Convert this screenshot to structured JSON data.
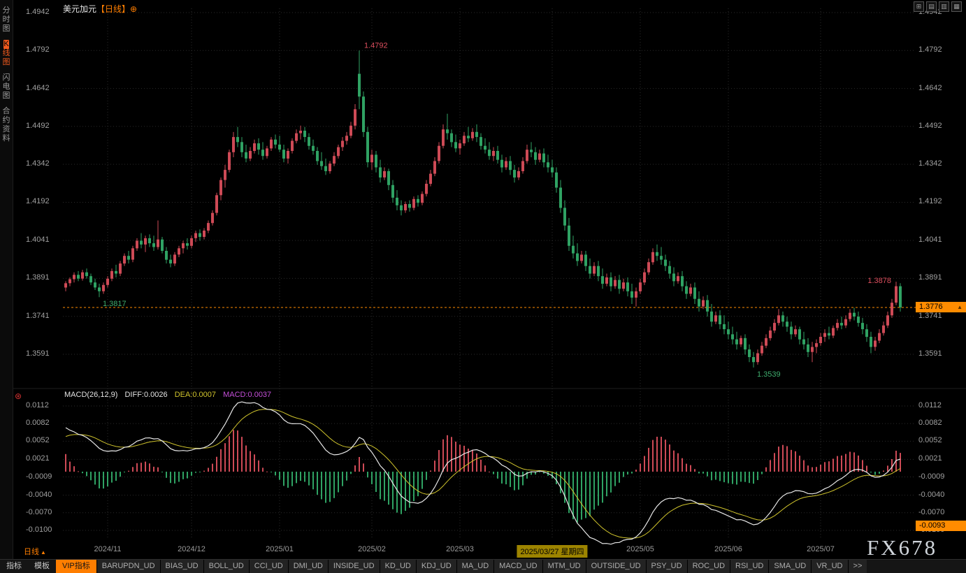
{
  "header": {
    "symbol": "美元加元",
    "period": "【日线】",
    "add_icon": "⊕"
  },
  "window_controls": {
    "icons": [
      {
        "name": "layout-grid-icon",
        "glyph": "⊞"
      },
      {
        "name": "layout-rows-icon",
        "glyph": "▤"
      },
      {
        "name": "layout-columns-icon",
        "glyph": "▥"
      },
      {
        "name": "layout-cells-icon",
        "glyph": "▦"
      }
    ]
  },
  "sidebar": {
    "items": [
      {
        "label": "分时图",
        "active": false
      },
      {
        "label": "K线图",
        "active": true
      },
      {
        "label": "闪电图",
        "active": false
      },
      {
        "label": "合约资料",
        "active": false
      }
    ]
  },
  "macd_header": {
    "remove_icon": "⊛",
    "title": "MACD(26,12,9)",
    "diff": "DIFF:0.0026",
    "dea": "DEA:0.0007",
    "macd": "MACD:0.0037"
  },
  "annotations": {
    "spike_high": "1.4792",
    "early_low": "1.3817",
    "recent_high": "1.3878",
    "major_low": "1.3539",
    "current_price": "1.3776",
    "current_price_arrow": "▲",
    "macd_tag": "-0.0093"
  },
  "footer": {
    "period_label": "日线",
    "period_arrow": "▲"
  },
  "bottom_bar": {
    "tabs": [
      "指标",
      "模板"
    ],
    "vip_tab": "VIP指标",
    "indicator_tabs": [
      "BARUPDN_UD",
      "BIAS_UD",
      "BOLL_UD",
      "CCI_UD",
      "DMI_UD",
      "INSIDE_UD",
      "KD_UD",
      "KDJ_UD",
      "MA_UD",
      "MACD_UD",
      "MTM_UD",
      "OUTSIDE_UD",
      "PSY_UD",
      "ROC_UD",
      "RSI_UD",
      "SMA_UD",
      "VR_UD"
    ],
    "more_tab": ">>"
  },
  "watermark": "FX678",
  "colors": {
    "up": "#ce4a56",
    "down": "#2fa263",
    "accent_orange": "#ff7e00",
    "diff_line": "#e8e8e8",
    "dea_line": "#cfc32c",
    "macd_value": "#c44fd8",
    "annotation_high": "#de4f5e",
    "annotation_low": "#3fae6e",
    "grid": "#2b2b2b",
    "axis_text": "#a0a0a0",
    "date_highlight_bg": "#9d8400",
    "price_line": "#ff8c00"
  },
  "chart_data": {
    "type": "candlestick",
    "symbol": "美元加元 (USD/CAD)",
    "timeframe": "日线 (daily)",
    "price_axis_labels": [
      "1.4942",
      "1.4792",
      "1.4642",
      "1.4492",
      "1.4342",
      "1.4192",
      "1.4041",
      "1.3891",
      "1.3741",
      "1.3591"
    ],
    "price_ylim": [
      1.3591,
      1.4942
    ],
    "macd_axis_labels": [
      "0.0112",
      "0.0082",
      "0.0052",
      "0.0021",
      "-0.0009",
      "-0.0040",
      "-0.0070",
      "-0.0100"
    ],
    "macd_ylim": [
      -0.01,
      0.0112
    ],
    "x_ticks": [
      {
        "index": 10,
        "label": "2024/11",
        "highlight": false
      },
      {
        "index": 30,
        "label": "2024/12",
        "highlight": false
      },
      {
        "index": 51,
        "label": "2025/01",
        "highlight": false
      },
      {
        "index": 73,
        "label": "2025/02",
        "highlight": false
      },
      {
        "index": 94,
        "label": "2025/03",
        "highlight": false
      },
      {
        "index": 116,
        "label": "2025/03/27 星期四",
        "highlight": true
      },
      {
        "index": 137,
        "label": "2025/05",
        "highlight": false
      },
      {
        "index": 158,
        "label": "2025/06",
        "highlight": false
      },
      {
        "index": 180,
        "label": "2025/07",
        "highlight": false
      }
    ],
    "macd_params": {
      "slow": 26,
      "fast": 12,
      "signal": 9,
      "diff": 0.0026,
      "dea": 0.0007,
      "macd": 0.0037
    },
    "candles": [
      [
        1.3855,
        1.388,
        1.384,
        1.3872
      ],
      [
        1.3872,
        1.3895,
        1.386,
        1.3888
      ],
      [
        1.3888,
        1.3915,
        1.3875,
        1.3905
      ],
      [
        1.3905,
        1.392,
        1.388,
        1.389
      ],
      [
        1.389,
        1.3925,
        1.3882,
        1.3915
      ],
      [
        1.3915,
        1.393,
        1.389,
        1.39
      ],
      [
        1.39,
        1.391,
        1.3865,
        1.3875
      ],
      [
        1.3875,
        1.389,
        1.3845,
        1.3855
      ],
      [
        1.3855,
        1.387,
        1.3817,
        1.384
      ],
      [
        1.384,
        1.3875,
        1.383,
        1.3865
      ],
      [
        1.3865,
        1.39,
        1.3855,
        1.389
      ],
      [
        1.389,
        1.393,
        1.388,
        1.392
      ],
      [
        1.392,
        1.3945,
        1.3895,
        1.391
      ],
      [
        1.391,
        1.396,
        1.39,
        1.395
      ],
      [
        1.395,
        1.399,
        1.394,
        1.398
      ],
      [
        1.398,
        1.4,
        1.395,
        1.3965
      ],
      [
        1.3965,
        1.402,
        1.3955,
        1.401
      ],
      [
        1.401,
        1.405,
        1.4,
        1.404
      ],
      [
        1.404,
        1.407,
        1.401,
        1.4025
      ],
      [
        1.4025,
        1.406,
        1.3995,
        1.405
      ],
      [
        1.405,
        1.4065,
        1.4015,
        1.403
      ],
      [
        1.403,
        1.406,
        1.4,
        1.4015
      ],
      [
        1.4015,
        1.412,
        1.4005,
        1.4045
      ],
      [
        1.4045,
        1.4055,
        1.399,
        1.4
      ],
      [
        1.4,
        1.4015,
        1.395,
        1.3965
      ],
      [
        1.3965,
        1.3985,
        1.3935,
        1.395
      ],
      [
        1.395,
        1.3995,
        1.394,
        1.3985
      ],
      [
        1.3985,
        1.402,
        1.3975,
        1.401
      ],
      [
        1.401,
        1.404,
        1.399,
        1.403
      ],
      [
        1.403,
        1.405,
        1.4005,
        1.402
      ],
      [
        1.402,
        1.406,
        1.401,
        1.405
      ],
      [
        1.405,
        1.408,
        1.4035,
        1.407
      ],
      [
        1.407,
        1.4085,
        1.404,
        1.4055
      ],
      [
        1.4055,
        1.409,
        1.4045,
        1.408
      ],
      [
        1.408,
        1.412,
        1.407,
        1.411
      ],
      [
        1.411,
        1.416,
        1.41,
        1.415
      ],
      [
        1.415,
        1.423,
        1.414,
        1.422
      ],
      [
        1.422,
        1.429,
        1.42,
        1.428
      ],
      [
        1.428,
        1.434,
        1.425,
        1.432
      ],
      [
        1.432,
        1.44,
        1.431,
        1.439
      ],
      [
        1.439,
        1.447,
        1.437,
        1.445
      ],
      [
        1.445,
        1.449,
        1.441,
        1.443
      ],
      [
        1.443,
        1.445,
        1.437,
        1.439
      ],
      [
        1.439,
        1.442,
        1.435,
        1.4365
      ],
      [
        1.4365,
        1.441,
        1.4355,
        1.4395
      ],
      [
        1.4395,
        1.444,
        1.4385,
        1.4425
      ],
      [
        1.4425,
        1.4445,
        1.438,
        1.44
      ],
      [
        1.44,
        1.443,
        1.436,
        1.4375
      ],
      [
        1.4375,
        1.4415,
        1.4365,
        1.4405
      ],
      [
        1.4405,
        1.445,
        1.4395,
        1.444
      ],
      [
        1.444,
        1.446,
        1.4405,
        1.442
      ],
      [
        1.442,
        1.4455,
        1.439,
        1.44
      ],
      [
        1.44,
        1.442,
        1.435,
        1.4365
      ],
      [
        1.4365,
        1.4405,
        1.4345,
        1.4395
      ],
      [
        1.4395,
        1.4445,
        1.4385,
        1.4435
      ],
      [
        1.4435,
        1.448,
        1.4425,
        1.4465
      ],
      [
        1.4465,
        1.4495,
        1.444,
        1.4475
      ],
      [
        1.4475,
        1.449,
        1.443,
        1.445
      ],
      [
        1.445,
        1.4465,
        1.44,
        1.4415
      ],
      [
        1.4415,
        1.444,
        1.438,
        1.4395
      ],
      [
        1.4395,
        1.441,
        1.434,
        1.4355
      ],
      [
        1.4355,
        1.439,
        1.432,
        1.4335
      ],
      [
        1.4335,
        1.4365,
        1.43,
        1.4315
      ],
      [
        1.4315,
        1.4355,
        1.4305,
        1.4345
      ],
      [
        1.4345,
        1.439,
        1.4335,
        1.4375
      ],
      [
        1.4375,
        1.442,
        1.4365,
        1.441
      ],
      [
        1.441,
        1.445,
        1.4395,
        1.4435
      ],
      [
        1.4435,
        1.447,
        1.442,
        1.4455
      ],
      [
        1.4455,
        1.451,
        1.4445,
        1.4495
      ],
      [
        1.4495,
        1.458,
        1.448,
        1.456
      ],
      [
        1.47,
        1.4792,
        1.456,
        1.461
      ],
      [
        1.461,
        1.463,
        1.445,
        1.447
      ],
      [
        1.447,
        1.449,
        1.433,
        1.435
      ],
      [
        1.435,
        1.44,
        1.432,
        1.438
      ],
      [
        1.438,
        1.4395,
        1.431,
        1.433
      ],
      [
        1.433,
        1.436,
        1.427,
        1.429
      ],
      [
        1.429,
        1.433,
        1.428,
        1.4315
      ],
      [
        1.4315,
        1.4325,
        1.424,
        1.426
      ],
      [
        1.426,
        1.428,
        1.419,
        1.421
      ],
      [
        1.421,
        1.424,
        1.416,
        1.418
      ],
      [
        1.418,
        1.42,
        1.414,
        1.416
      ],
      [
        1.416,
        1.4195,
        1.415,
        1.4185
      ],
      [
        1.4185,
        1.42,
        1.4155,
        1.417
      ],
      [
        1.417,
        1.4215,
        1.416,
        1.4205
      ],
      [
        1.4205,
        1.422,
        1.4175,
        1.419
      ],
      [
        1.419,
        1.4235,
        1.418,
        1.4225
      ],
      [
        1.4225,
        1.428,
        1.4215,
        1.4265
      ],
      [
        1.4265,
        1.432,
        1.4255,
        1.4305
      ],
      [
        1.4305,
        1.437,
        1.4295,
        1.4355
      ],
      [
        1.4355,
        1.443,
        1.4345,
        1.4415
      ],
      [
        1.4415,
        1.45,
        1.4405,
        1.448
      ],
      [
        1.448,
        1.4542,
        1.444,
        1.4465
      ],
      [
        1.4465,
        1.448,
        1.441,
        1.443
      ],
      [
        1.443,
        1.446,
        1.439,
        1.4405
      ],
      [
        1.4405,
        1.444,
        1.438,
        1.4425
      ],
      [
        1.4425,
        1.447,
        1.4415,
        1.4455
      ],
      [
        1.4455,
        1.449,
        1.443,
        1.4445
      ],
      [
        1.4445,
        1.4485,
        1.4435,
        1.447
      ],
      [
        1.447,
        1.45,
        1.443,
        1.445
      ],
      [
        1.445,
        1.4465,
        1.44,
        1.4415
      ],
      [
        1.4415,
        1.4445,
        1.4385,
        1.44
      ],
      [
        1.44,
        1.443,
        1.436,
        1.4375
      ],
      [
        1.4375,
        1.441,
        1.4355,
        1.4395
      ],
      [
        1.4395,
        1.4415,
        1.4345,
        1.436
      ],
      [
        1.436,
        1.438,
        1.431,
        1.433
      ],
      [
        1.433,
        1.437,
        1.432,
        1.4355
      ],
      [
        1.4355,
        1.4375,
        1.43,
        1.432
      ],
      [
        1.432,
        1.434,
        1.427,
        1.429
      ],
      [
        1.429,
        1.433,
        1.428,
        1.4315
      ],
      [
        1.4315,
        1.437,
        1.4305,
        1.4355
      ],
      [
        1.4355,
        1.442,
        1.4345,
        1.44
      ],
      [
        1.44,
        1.443,
        1.437,
        1.439
      ],
      [
        1.439,
        1.441,
        1.434,
        1.436
      ],
      [
        1.436,
        1.44,
        1.435,
        1.4385
      ],
      [
        1.4385,
        1.4405,
        1.433,
        1.435
      ],
      [
        1.435,
        1.438,
        1.431,
        1.433
      ],
      [
        1.433,
        1.436,
        1.429,
        1.431
      ],
      [
        1.431,
        1.433,
        1.423,
        1.425
      ],
      [
        1.425,
        1.428,
        1.415,
        1.417
      ],
      [
        1.417,
        1.42,
        1.408,
        1.41
      ],
      [
        1.41,
        1.413,
        1.4,
        1.402
      ],
      [
        1.402,
        1.406,
        1.397,
        1.399
      ],
      [
        1.399,
        1.403,
        1.394,
        1.396
      ],
      [
        1.396,
        1.4,
        1.395,
        1.3985
      ],
      [
        1.3985,
        1.4,
        1.392,
        1.394
      ],
      [
        1.394,
        1.397,
        1.389,
        1.391
      ],
      [
        1.391,
        1.3955,
        1.39,
        1.394
      ],
      [
        1.394,
        1.396,
        1.388,
        1.39
      ],
      [
        1.39,
        1.393,
        1.385,
        1.387
      ],
      [
        1.387,
        1.391,
        1.386,
        1.3895
      ],
      [
        1.3895,
        1.3915,
        1.384,
        1.386
      ],
      [
        1.386,
        1.39,
        1.385,
        1.3885
      ],
      [
        1.3885,
        1.3905,
        1.383,
        1.385
      ],
      [
        1.385,
        1.389,
        1.384,
        1.3875
      ],
      [
        1.3875,
        1.3895,
        1.382,
        1.384
      ],
      [
        1.384,
        1.387,
        1.379,
        1.3815
      ],
      [
        1.3815,
        1.3855,
        1.378,
        1.384
      ],
      [
        1.384,
        1.389,
        1.383,
        1.3875
      ],
      [
        1.3875,
        1.393,
        1.3865,
        1.3915
      ],
      [
        1.3915,
        1.397,
        1.3905,
        1.3955
      ],
      [
        1.3955,
        1.401,
        1.3945,
        1.3995
      ],
      [
        1.3995,
        1.4025,
        1.396,
        1.398
      ],
      [
        1.398,
        1.4015,
        1.3945,
        1.3965
      ],
      [
        1.3965,
        1.3985,
        1.392,
        1.394
      ],
      [
        1.394,
        1.396,
        1.389,
        1.391
      ],
      [
        1.391,
        1.3935,
        1.386,
        1.388
      ],
      [
        1.388,
        1.3915,
        1.387,
        1.39
      ],
      [
        1.39,
        1.392,
        1.384,
        1.386
      ],
      [
        1.386,
        1.388,
        1.381,
        1.383
      ],
      [
        1.383,
        1.387,
        1.382,
        1.3855
      ],
      [
        1.3855,
        1.3875,
        1.379,
        1.381
      ],
      [
        1.381,
        1.384,
        1.376,
        1.378
      ],
      [
        1.378,
        1.382,
        1.377,
        1.3805
      ],
      [
        1.3805,
        1.3825,
        1.374,
        1.376
      ],
      [
        1.376,
        1.379,
        1.37,
        1.372
      ],
      [
        1.372,
        1.376,
        1.371,
        1.3745
      ],
      [
        1.3745,
        1.3765,
        1.369,
        1.371
      ],
      [
        1.371,
        1.3745,
        1.367,
        1.369
      ],
      [
        1.369,
        1.372,
        1.365,
        1.367
      ],
      [
        1.367,
        1.37,
        1.363,
        1.365
      ],
      [
        1.365,
        1.368,
        1.361,
        1.363
      ],
      [
        1.363,
        1.3665,
        1.362,
        1.3655
      ],
      [
        1.3655,
        1.367,
        1.359,
        1.361
      ],
      [
        1.361,
        1.363,
        1.356,
        1.358
      ],
      [
        1.358,
        1.36,
        1.3539,
        1.356
      ],
      [
        1.356,
        1.361,
        1.355,
        1.3595
      ],
      [
        1.3595,
        1.364,
        1.3585,
        1.3625
      ],
      [
        1.3625,
        1.367,
        1.3615,
        1.3655
      ],
      [
        1.3655,
        1.37,
        1.3645,
        1.3685
      ],
      [
        1.3685,
        1.373,
        1.3675,
        1.3715
      ],
      [
        1.3715,
        1.377,
        1.3705,
        1.3745
      ],
      [
        1.3745,
        1.376,
        1.37,
        1.372
      ],
      [
        1.372,
        1.374,
        1.368,
        1.37
      ],
      [
        1.37,
        1.372,
        1.365,
        1.367
      ],
      [
        1.367,
        1.3705,
        1.366,
        1.369
      ],
      [
        1.369,
        1.37,
        1.363,
        1.365
      ],
      [
        1.365,
        1.368,
        1.361,
        1.363
      ],
      [
        1.363,
        1.3655,
        1.358,
        1.36
      ],
      [
        1.36,
        1.364,
        1.356,
        1.362
      ],
      [
        1.362,
        1.365,
        1.3595,
        1.3635
      ],
      [
        1.3635,
        1.3675,
        1.3625,
        1.366
      ],
      [
        1.366,
        1.369,
        1.364,
        1.3675
      ],
      [
        1.3675,
        1.37,
        1.365,
        1.3665
      ],
      [
        1.3665,
        1.3705,
        1.3655,
        1.3695
      ],
      [
        1.3695,
        1.373,
        1.3685,
        1.3715
      ],
      [
        1.3715,
        1.374,
        1.369,
        1.3705
      ],
      [
        1.3705,
        1.3745,
        1.3695,
        1.373
      ],
      [
        1.373,
        1.377,
        1.372,
        1.3755
      ],
      [
        1.3755,
        1.3775,
        1.3725,
        1.374
      ],
      [
        1.374,
        1.376,
        1.37,
        1.3715
      ],
      [
        1.3715,
        1.3735,
        1.367,
        1.369
      ],
      [
        1.369,
        1.371,
        1.364,
        1.366
      ],
      [
        1.366,
        1.368,
        1.3595,
        1.362
      ],
      [
        1.362,
        1.366,
        1.3605,
        1.3645
      ],
      [
        1.3645,
        1.369,
        1.3635,
        1.3675
      ],
      [
        1.3675,
        1.372,
        1.3665,
        1.3705
      ],
      [
        1.3705,
        1.376,
        1.3695,
        1.3745
      ],
      [
        1.3745,
        1.381,
        1.3735,
        1.3795
      ],
      [
        1.3795,
        1.3878,
        1.3785,
        1.386
      ],
      [
        1.386,
        1.3872,
        1.376,
        1.3776
      ]
    ]
  }
}
